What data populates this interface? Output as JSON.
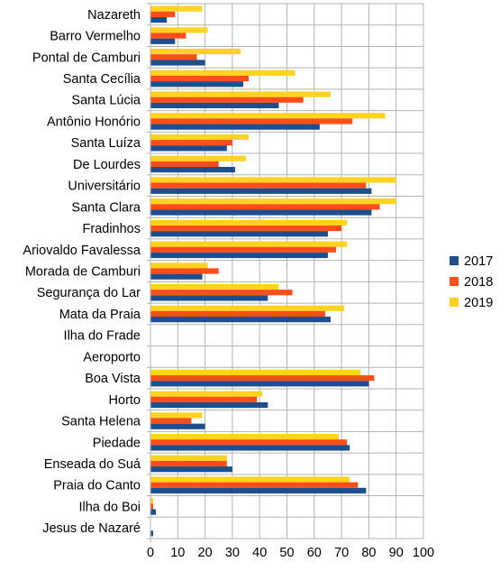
{
  "chart_data": {
    "type": "bar",
    "orientation": "horizontal",
    "categories": [
      "Nazareth",
      "Barro Vermelho",
      "Pontal de Camburi",
      "Santa Cecília",
      "Santa Lúcia",
      "Antônio Honório",
      "Santa Luíza",
      "De Lourdes",
      "Universitário",
      "Santa Clara",
      "Fradinhos",
      "Ariovaldo Favalessa",
      "Morada de Camburi",
      "Segurança do Lar",
      "Mata da Praia",
      "Ilha do Frade",
      "Aeroporto",
      "Boa Vista",
      "Horto",
      "Santa Helena",
      "Piedade",
      "Enseada do Suá",
      "Praia do Canto",
      "Ilha do Boi",
      "Jesus de Nazaré"
    ],
    "series": [
      {
        "name": "2017",
        "color": "#1f4e8c",
        "values": [
          6,
          9,
          20,
          34,
          47,
          62,
          28,
          31,
          81,
          81,
          65,
          65,
          19,
          43,
          66,
          0,
          0,
          80,
          43,
          20,
          73,
          30,
          79,
          2,
          1
        ]
      },
      {
        "name": "2018",
        "color": "#ff4e1a",
        "values": [
          9,
          13,
          17,
          36,
          56,
          74,
          30,
          25,
          79,
          84,
          70,
          68,
          25,
          52,
          64,
          0,
          0,
          82,
          39,
          15,
          72,
          28,
          76,
          1,
          0
        ]
      },
      {
        "name": "2019",
        "color": "#ffd320",
        "values": [
          19,
          21,
          33,
          53,
          66,
          86,
          36,
          35,
          90,
          90,
          72,
          72,
          21,
          47,
          71,
          0,
          0,
          77,
          41,
          19,
          69,
          28,
          73,
          1,
          0
        ]
      }
    ],
    "xlim": [
      0,
      100
    ],
    "x_ticks": [
      "0",
      "10",
      "20",
      "30",
      "40",
      "50",
      "60",
      "70",
      "80",
      "90",
      "100"
    ],
    "title": "",
    "xlabel": "",
    "ylabel": "",
    "grid": true,
    "legend_position": "right"
  }
}
